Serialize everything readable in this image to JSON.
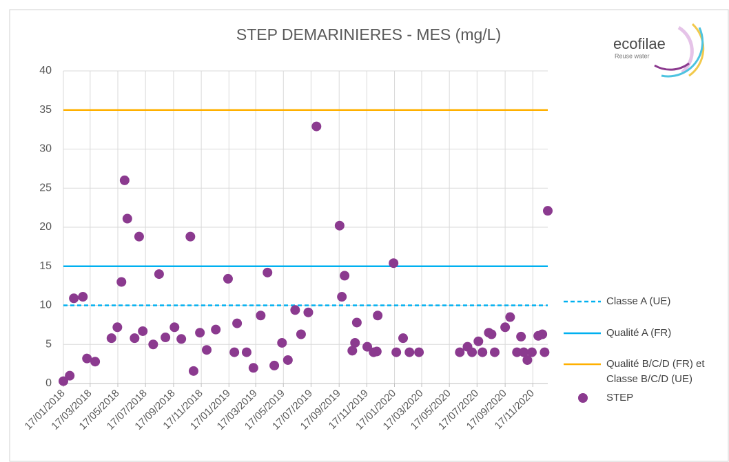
{
  "chart_data": {
    "type": "scatter",
    "title": "STEP DEMARINIERES - MES (mg/L)",
    "logo": {
      "name": "ecofilae",
      "tagline": "Reuse water"
    },
    "xlim": [
      "17/01/2018",
      "20/12/2020"
    ],
    "xticks": [
      "17/01/2018",
      "17/03/2018",
      "17/05/2018",
      "17/07/2018",
      "17/09/2018",
      "17/11/2018",
      "17/01/2019",
      "17/03/2019",
      "17/05/2019",
      "17/07/2019",
      "17/09/2019",
      "17/11/2019",
      "17/01/2020",
      "17/03/2020",
      "17/05/2020",
      "17/07/2020",
      "17/09/2020",
      "17/11/2020"
    ],
    "ylim": [
      0,
      40
    ],
    "yticks": [
      0,
      5,
      10,
      15,
      20,
      25,
      30,
      35,
      40
    ],
    "grid": true,
    "reference_lines": [
      {
        "name": "Classe A (UE)",
        "value": 10,
        "color": "#00b0f0",
        "dashed": true
      },
      {
        "name": "Qualité A (FR)",
        "value": 15,
        "color": "#00b0f0",
        "dashed": false
      },
      {
        "name": "Qualité B/C/D (FR) et Classe B/C/D (UE)",
        "value": 35,
        "color": "#ffb000",
        "dashed": false
      }
    ],
    "series": [
      {
        "name": "STEP",
        "color": "#8b3a8f",
        "x": [
          "17/01/2018",
          "31/01/2018",
          "09/02/2018",
          "01/03/2018",
          "10/03/2018",
          "28/03/2018",
          "03/05/2018",
          "16/05/2018",
          "25/05/2018",
          "01/06/2018",
          "07/06/2018",
          "23/06/2018",
          "03/07/2018",
          "11/07/2018",
          "03/08/2018",
          "16/08/2018",
          "30/08/2018",
          "19/09/2018",
          "04/10/2018",
          "24/10/2018",
          "31/10/2018",
          "14/11/2018",
          "29/11/2018",
          "19/12/2018",
          "15/01/2019",
          "29/01/2019",
          "04/02/2019",
          "25/02/2019",
          "12/03/2019",
          "28/03/2019",
          "12/04/2019",
          "27/04/2019",
          "14/05/2019",
          "27/05/2019",
          "12/06/2019",
          "25/06/2019",
          "11/07/2019",
          "29/07/2019",
          "18/09/2019",
          "23/09/2019",
          "29/09/2019",
          "16/10/2019",
          "22/10/2019",
          "26/10/2019",
          "18/11/2019",
          "02/12/2019",
          "09/12/2019",
          "11/12/2019",
          "15/01/2020",
          "21/01/2020",
          "05/02/2020",
          "19/02/2020",
          "11/03/2020",
          "09/06/2020",
          "26/06/2020",
          "06/07/2020",
          "20/07/2020",
          "29/07/2020",
          "12/08/2020",
          "18/08/2020",
          "25/08/2020",
          "17/09/2020",
          "28/09/2020",
          "13/10/2020",
          "22/10/2020",
          "28/10/2020",
          "05/11/2020",
          "15/11/2020",
          "29/11/2020",
          "08/12/2020",
          "13/12/2020",
          "20/12/2020"
        ],
        "values": [
          0.3,
          1,
          10.9,
          11.1,
          3.2,
          2.8,
          5.8,
          7.2,
          13,
          26,
          21.1,
          5.8,
          18.8,
          6.7,
          5,
          14,
          5.9,
          7.2,
          5.7,
          18.8,
          1.6,
          6.5,
          4.3,
          6.9,
          13.4,
          4,
          7.7,
          4,
          2,
          8.7,
          14.2,
          2.3,
          5.2,
          3,
          9.4,
          6.3,
          9.1,
          32.9,
          20.2,
          11.1,
          13.8,
          4.2,
          5.2,
          7.8,
          4.7,
          4,
          4.1,
          8.7,
          15.4,
          4,
          5.8,
          4,
          4,
          4,
          4.7,
          4,
          5.4,
          4,
          6.5,
          6.3,
          4,
          7.2,
          8.5,
          4,
          6,
          4,
          3,
          4,
          6.1,
          6.3,
          4,
          22.1
        ]
      }
    ]
  }
}
